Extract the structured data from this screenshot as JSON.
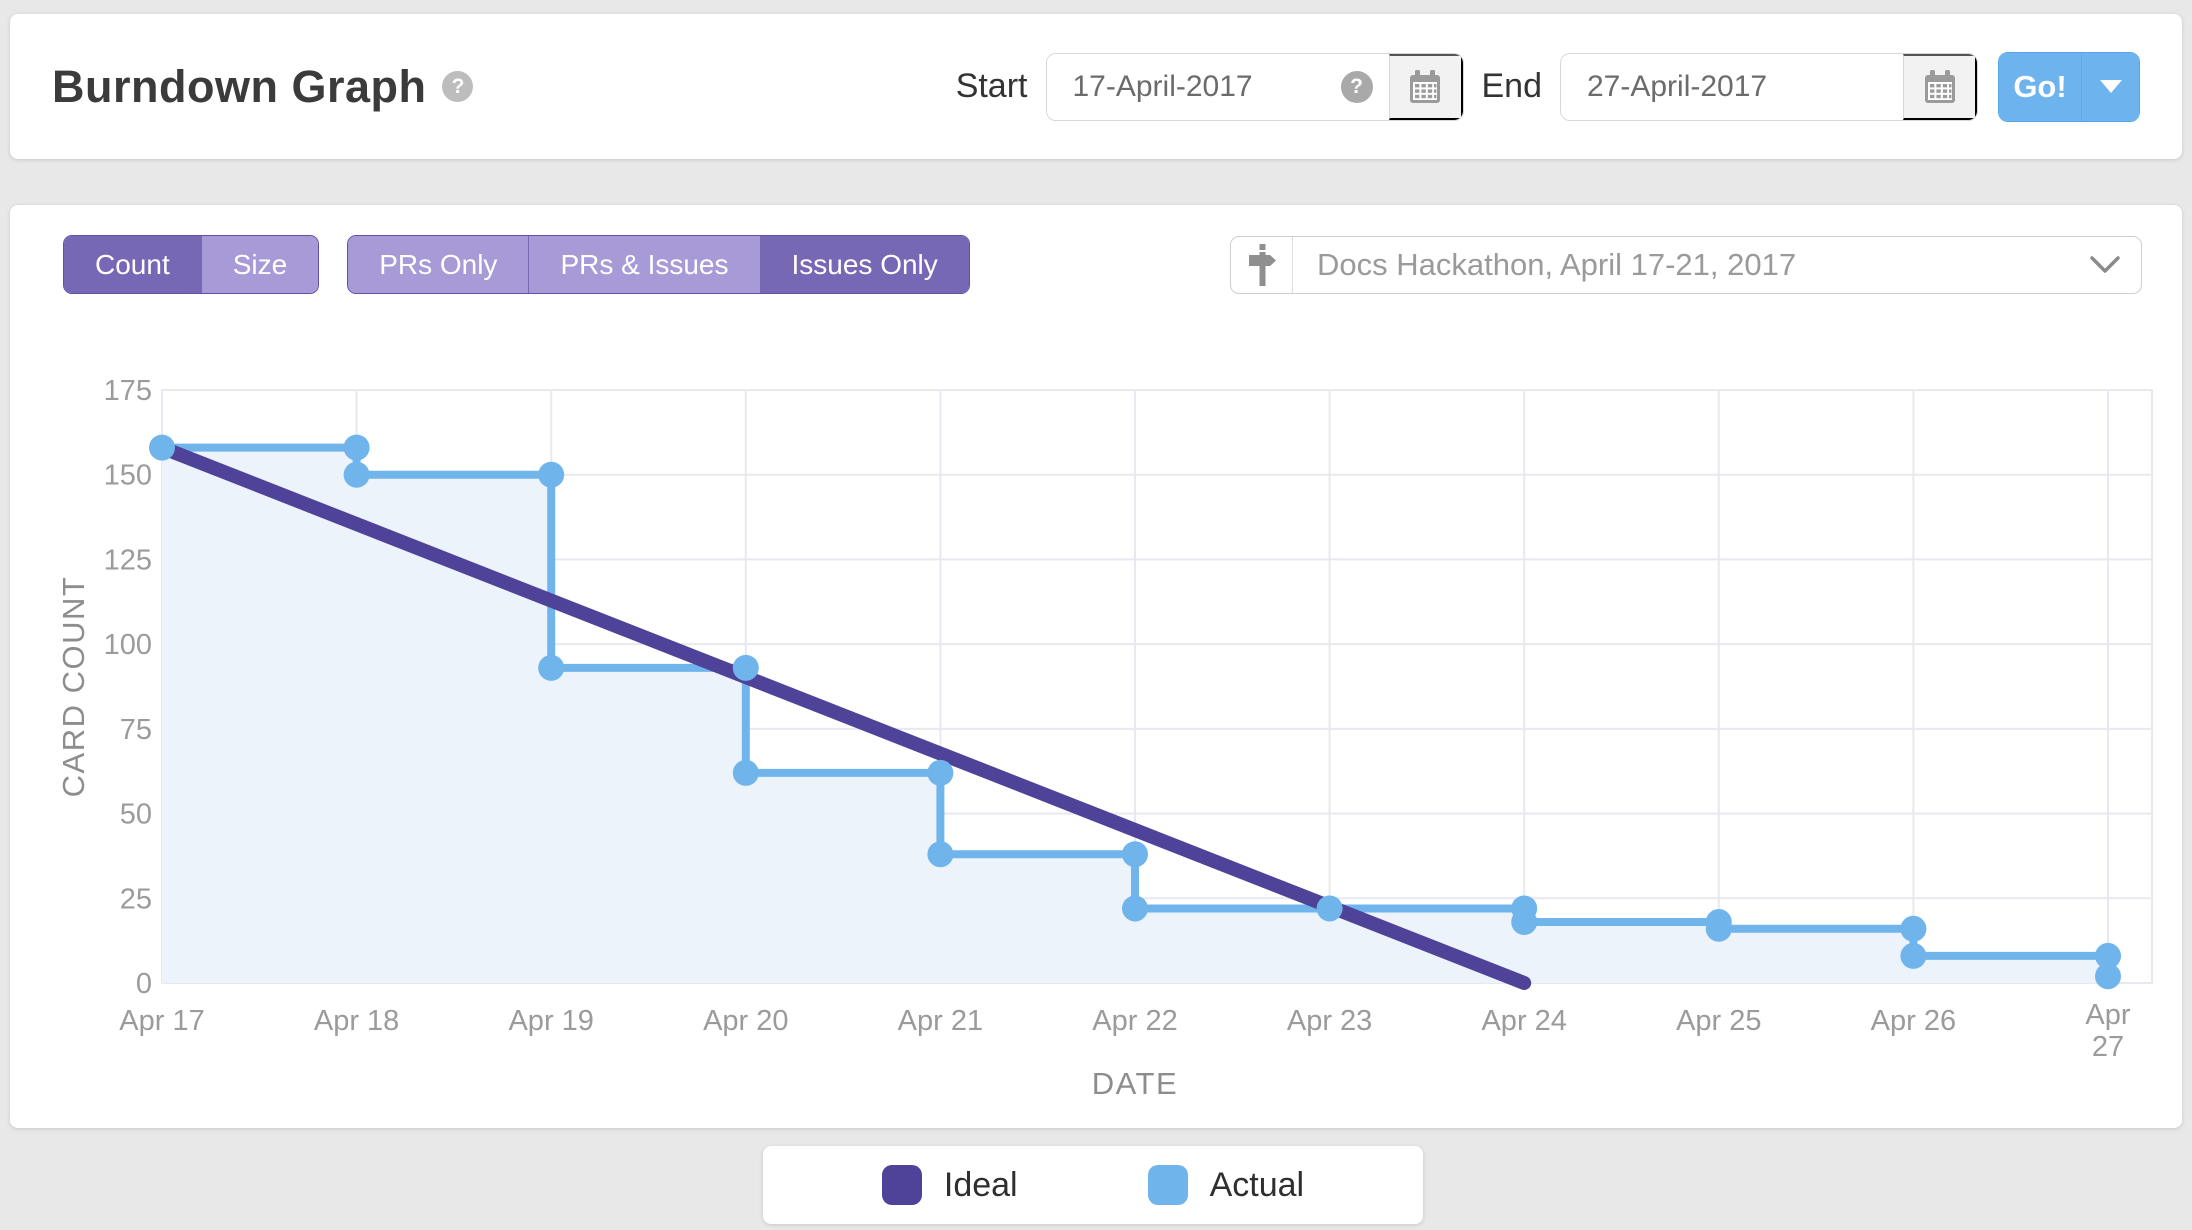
{
  "header": {
    "title": "Burndown Graph",
    "title_help": "?",
    "start": {
      "label": "Start",
      "value": "17-April-2017",
      "help": "?"
    },
    "end": {
      "label": "End",
      "value": "27-April-2017"
    },
    "go": {
      "label": "Go!"
    }
  },
  "toolbar": {
    "metric_toggle": {
      "options": [
        {
          "label": "Count",
          "selected": true
        },
        {
          "label": "Size",
          "selected": false
        }
      ]
    },
    "type_toggle": {
      "options": [
        {
          "label": "PRs Only",
          "selected": false
        },
        {
          "label": "PRs & Issues",
          "selected": false
        },
        {
          "label": "Issues Only",
          "selected": true
        }
      ]
    },
    "milestone_select": {
      "value": "Docs Hackathon, April 17-21, 2017"
    }
  },
  "chart_data": {
    "type": "line",
    "title": "",
    "xlabel": "DATE",
    "ylabel": "CARD COUNT",
    "ylim": [
      0,
      175
    ],
    "yticks": [
      0,
      25,
      50,
      75,
      100,
      125,
      150,
      175
    ],
    "grid": true,
    "categories": [
      "Apr 17",
      "Apr 18",
      "Apr 19",
      "Apr 20",
      "Apr 21",
      "Apr 22",
      "Apr 23",
      "Apr 24",
      "Apr 25",
      "Apr 26",
      "Apr 27"
    ],
    "series": [
      {
        "name": "Ideal",
        "shape": "straight",
        "color": "#4f4299",
        "points": [
          {
            "x": "Apr 17",
            "y": 158
          },
          {
            "x": "Apr 24",
            "y": 0
          }
        ]
      },
      {
        "name": "Actual",
        "shape": "step",
        "color": "#70b4ec",
        "fill": "#edf3fb",
        "steps": [
          {
            "x": "Apr 17",
            "start": 158,
            "end": 158
          },
          {
            "x": "Apr 18",
            "start": 158,
            "end": 150
          },
          {
            "x": "Apr 19",
            "start": 150,
            "end": 93
          },
          {
            "x": "Apr 20",
            "start": 93,
            "end": 62
          },
          {
            "x": "Apr 21",
            "start": 62,
            "end": 38
          },
          {
            "x": "Apr 22",
            "start": 38,
            "end": 22
          },
          {
            "x": "Apr 23",
            "start": 22,
            "end": 22
          },
          {
            "x": "Apr 24",
            "start": 22,
            "end": 18
          },
          {
            "x": "Apr 25",
            "start": 18,
            "end": 16
          },
          {
            "x": "Apr 26",
            "start": 16,
            "end": 8
          },
          {
            "x": "Apr 27",
            "start": 8,
            "end": 2
          }
        ]
      }
    ],
    "legend": [
      {
        "label": "Ideal",
        "color": "#4f4299"
      },
      {
        "label": "Actual",
        "color": "#70b4ec"
      }
    ],
    "legend_position": "bottom"
  },
  "colors": {
    "page_background": "#e8e8e8",
    "card_background": "#ffffff",
    "toggle_selected": "#7768b6",
    "toggle_unselected": "#a79ad6",
    "toggle_border": "#6052a3",
    "go_blue": "#6db3ed",
    "ideal_line": "#4f4299",
    "actual_line": "#70b4ec",
    "actual_fill": "#edf3fb",
    "grid_line": "#e8e9f0",
    "tick_label": "#9b9b9b",
    "axis_title": "#8d8d8d"
  }
}
